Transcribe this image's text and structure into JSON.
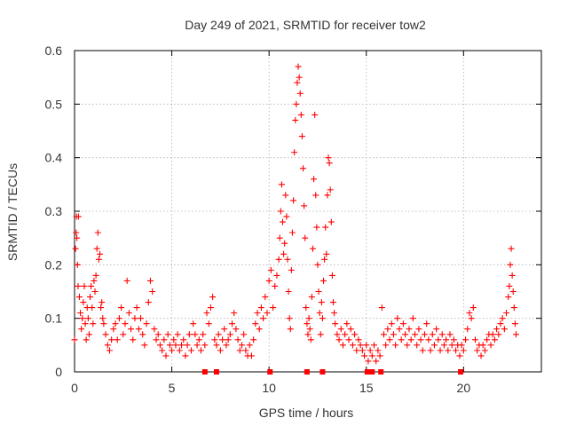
{
  "chart_data": {
    "type": "scatter",
    "title": "Day 249 of 2021, SRMTID for receiver tow2",
    "xlabel": "GPS time / hours",
    "ylabel": "SRMTID / TECUs",
    "xlim": [
      0,
      24
    ],
    "ylim": [
      0,
      0.6
    ],
    "xticks": [
      0,
      5,
      10,
      15,
      20
    ],
    "yticks": [
      0,
      0.1,
      0.2,
      0.3,
      0.4,
      0.5,
      0.6
    ],
    "xtick_labels": [
      "0",
      "5",
      "10",
      "15",
      "20"
    ],
    "ytick_labels": [
      "0",
      "0.1",
      "0.2",
      "0.3",
      "0.4",
      "0.5",
      "0.6"
    ],
    "grid": true,
    "legend": "none",
    "marker": "plus",
    "series": [
      {
        "name": "SRMTID",
        "color": "#ff0000",
        "points": [
          [
            0.0,
            0.06
          ],
          [
            0.05,
            0.23
          ],
          [
            0.08,
            0.26
          ],
          [
            0.1,
            0.29
          ],
          [
            0.12,
            0.25
          ],
          [
            0.15,
            0.2
          ],
          [
            0.18,
            0.16
          ],
          [
            0.2,
            0.29
          ],
          [
            0.25,
            0.14
          ],
          [
            0.3,
            0.11
          ],
          [
            0.35,
            0.08
          ],
          [
            0.4,
            0.1
          ],
          [
            0.45,
            0.13
          ],
          [
            0.5,
            0.16
          ],
          [
            0.55,
            0.09
          ],
          [
            0.6,
            0.06
          ],
          [
            0.65,
            0.12
          ],
          [
            0.7,
            0.1
          ],
          [
            0.75,
            0.07
          ],
          [
            0.8,
            0.14
          ],
          [
            0.85,
            0.16
          ],
          [
            0.9,
            0.12
          ],
          [
            0.95,
            0.09
          ],
          [
            1.0,
            0.17
          ],
          [
            1.05,
            0.15
          ],
          [
            1.1,
            0.18
          ],
          [
            1.15,
            0.23
          ],
          [
            1.2,
            0.26
          ],
          [
            1.25,
            0.21
          ],
          [
            1.3,
            0.22
          ],
          [
            1.35,
            0.12
          ],
          [
            1.4,
            0.13
          ],
          [
            1.45,
            0.1
          ],
          [
            1.5,
            0.09
          ],
          [
            1.6,
            0.07
          ],
          [
            1.7,
            0.05
          ],
          [
            1.8,
            0.04
          ],
          [
            1.9,
            0.06
          ],
          [
            2.0,
            0.08
          ],
          [
            2.1,
            0.09
          ],
          [
            2.2,
            0.06
          ],
          [
            2.3,
            0.1
          ],
          [
            2.4,
            0.12
          ],
          [
            2.5,
            0.07
          ],
          [
            2.6,
            0.09
          ],
          [
            2.7,
            0.17
          ],
          [
            2.8,
            0.11
          ],
          [
            2.9,
            0.08
          ],
          [
            3.0,
            0.06
          ],
          [
            3.1,
            0.1
          ],
          [
            3.2,
            0.12
          ],
          [
            3.3,
            0.08
          ],
          [
            3.4,
            0.1
          ],
          [
            3.5,
            0.07
          ],
          [
            3.6,
            0.05
          ],
          [
            3.7,
            0.09
          ],
          [
            3.8,
            0.13
          ],
          [
            3.9,
            0.17
          ],
          [
            4.0,
            0.15
          ],
          [
            4.1,
            0.08
          ],
          [
            4.2,
            0.06
          ],
          [
            4.3,
            0.07
          ],
          [
            4.4,
            0.05
          ],
          [
            4.5,
            0.04
          ],
          [
            4.6,
            0.06
          ],
          [
            4.7,
            0.03
          ],
          [
            4.8,
            0.07
          ],
          [
            4.9,
            0.05
          ],
          [
            5.0,
            0.04
          ],
          [
            5.1,
            0.06
          ],
          [
            5.2,
            0.05
          ],
          [
            5.3,
            0.07
          ],
          [
            5.4,
            0.04
          ],
          [
            5.5,
            0.05
          ],
          [
            5.6,
            0.06
          ],
          [
            5.7,
            0.03
          ],
          [
            5.8,
            0.05
          ],
          [
            5.9,
            0.07
          ],
          [
            6.0,
            0.04
          ],
          [
            6.1,
            0.09
          ],
          [
            6.2,
            0.07
          ],
          [
            6.3,
            0.05
          ],
          [
            6.4,
            0.06
          ],
          [
            6.5,
            0.04
          ],
          [
            6.6,
            0.07
          ],
          [
            6.7,
            0.05
          ],
          [
            6.8,
            0.11
          ],
          [
            6.9,
            0.09
          ],
          [
            7.0,
            0.12
          ],
          [
            7.1,
            0.14
          ],
          [
            7.2,
            0.06
          ],
          [
            7.3,
            0.05
          ],
          [
            7.4,
            0.07
          ],
          [
            7.5,
            0.04
          ],
          [
            7.6,
            0.06
          ],
          [
            7.7,
            0.08
          ],
          [
            7.8,
            0.05
          ],
          [
            7.9,
            0.06
          ],
          [
            8.0,
            0.07
          ],
          [
            8.1,
            0.09
          ],
          [
            8.2,
            0.11
          ],
          [
            8.3,
            0.08
          ],
          [
            8.4,
            0.06
          ],
          [
            8.5,
            0.04
          ],
          [
            8.6,
            0.05
          ],
          [
            8.7,
            0.07
          ],
          [
            8.8,
            0.04
          ],
          [
            8.9,
            0.03
          ],
          [
            9.0,
            0.05
          ],
          [
            9.1,
            0.03
          ],
          [
            9.2,
            0.06
          ],
          [
            9.3,
            0.09
          ],
          [
            9.4,
            0.11
          ],
          [
            9.5,
            0.08
          ],
          [
            9.6,
            0.12
          ],
          [
            9.7,
            0.1
          ],
          [
            9.8,
            0.14
          ],
          [
            9.9,
            0.11
          ],
          [
            10.0,
            0.17
          ],
          [
            10.1,
            0.19
          ],
          [
            10.2,
            0.12
          ],
          [
            10.3,
            0.16
          ],
          [
            10.4,
            0.18
          ],
          [
            10.5,
            0.21
          ],
          [
            10.55,
            0.25
          ],
          [
            10.6,
            0.3
          ],
          [
            10.65,
            0.35
          ],
          [
            10.7,
            0.28
          ],
          [
            10.75,
            0.22
          ],
          [
            10.8,
            0.24
          ],
          [
            10.85,
            0.33
          ],
          [
            10.9,
            0.29
          ],
          [
            10.95,
            0.21
          ],
          [
            11.0,
            0.15
          ],
          [
            11.05,
            0.1
          ],
          [
            11.1,
            0.08
          ],
          [
            11.15,
            0.19
          ],
          [
            11.2,
            0.26
          ],
          [
            11.25,
            0.32
          ],
          [
            11.3,
            0.41
          ],
          [
            11.35,
            0.47
          ],
          [
            11.4,
            0.5
          ],
          [
            11.45,
            0.54
          ],
          [
            11.5,
            0.57
          ],
          [
            11.55,
            0.55
          ],
          [
            11.6,
            0.52
          ],
          [
            11.65,
            0.48
          ],
          [
            11.7,
            0.44
          ],
          [
            11.75,
            0.38
          ],
          [
            11.8,
            0.31
          ],
          [
            11.85,
            0.25
          ],
          [
            11.9,
            0.12
          ],
          [
            11.95,
            0.09
          ],
          [
            12.0,
            0.07
          ],
          [
            12.05,
            0.1
          ],
          [
            12.1,
            0.08
          ],
          [
            12.15,
            0.06
          ],
          [
            12.2,
            0.14
          ],
          [
            12.25,
            0.23
          ],
          [
            12.3,
            0.36
          ],
          [
            12.35,
            0.48
          ],
          [
            12.4,
            0.33
          ],
          [
            12.45,
            0.27
          ],
          [
            12.5,
            0.2
          ],
          [
            12.55,
            0.15
          ],
          [
            12.6,
            0.11
          ],
          [
            12.65,
            0.07
          ],
          [
            12.7,
            0.13
          ],
          [
            12.75,
            0.1
          ],
          [
            12.8,
            0.17
          ],
          [
            12.85,
            0.21
          ],
          [
            12.9,
            0.27
          ],
          [
            12.95,
            0.22
          ],
          [
            13.0,
            0.33
          ],
          [
            13.05,
            0.4
          ],
          [
            13.1,
            0.39
          ],
          [
            13.15,
            0.34
          ],
          [
            13.2,
            0.28
          ],
          [
            13.25,
            0.18
          ],
          [
            13.3,
            0.13
          ],
          [
            13.35,
            0.11
          ],
          [
            13.4,
            0.09
          ],
          [
            13.5,
            0.07
          ],
          [
            13.6,
            0.06
          ],
          [
            13.7,
            0.08
          ],
          [
            13.8,
            0.05
          ],
          [
            13.9,
            0.07
          ],
          [
            14.0,
            0.09
          ],
          [
            14.1,
            0.06
          ],
          [
            14.2,
            0.08
          ],
          [
            14.3,
            0.05
          ],
          [
            14.4,
            0.07
          ],
          [
            14.5,
            0.04
          ],
          [
            14.6,
            0.06
          ],
          [
            14.7,
            0.05
          ],
          [
            14.8,
            0.04
          ],
          [
            14.9,
            0.03
          ],
          [
            15.0,
            0.05
          ],
          [
            15.1,
            0.02
          ],
          [
            15.2,
            0.04
          ],
          [
            15.3,
            0.03
          ],
          [
            15.4,
            0.05
          ],
          [
            15.5,
            0.02
          ],
          [
            15.6,
            0.04
          ],
          [
            15.7,
            0.03
          ],
          [
            15.8,
            0.12
          ],
          [
            15.9,
            0.07
          ],
          [
            16.0,
            0.05
          ],
          [
            16.1,
            0.08
          ],
          [
            16.2,
            0.06
          ],
          [
            16.3,
            0.09
          ],
          [
            16.4,
            0.07
          ],
          [
            16.5,
            0.05
          ],
          [
            16.6,
            0.1
          ],
          [
            16.7,
            0.08
          ],
          [
            16.8,
            0.06
          ],
          [
            16.9,
            0.09
          ],
          [
            17.0,
            0.07
          ],
          [
            17.1,
            0.05
          ],
          [
            17.2,
            0.08
          ],
          [
            17.3,
            0.06
          ],
          [
            17.4,
            0.1
          ],
          [
            17.5,
            0.07
          ],
          [
            17.6,
            0.05
          ],
          [
            17.7,
            0.08
          ],
          [
            17.8,
            0.06
          ],
          [
            17.9,
            0.04
          ],
          [
            18.0,
            0.07
          ],
          [
            18.1,
            0.09
          ],
          [
            18.2,
            0.06
          ],
          [
            18.3,
            0.04
          ],
          [
            18.4,
            0.07
          ],
          [
            18.5,
            0.05
          ],
          [
            18.6,
            0.08
          ],
          [
            18.7,
            0.06
          ],
          [
            18.8,
            0.04
          ],
          [
            18.9,
            0.07
          ],
          [
            19.0,
            0.05
          ],
          [
            19.1,
            0.06
          ],
          [
            19.2,
            0.04
          ],
          [
            19.3,
            0.07
          ],
          [
            19.4,
            0.05
          ],
          [
            19.5,
            0.06
          ],
          [
            19.6,
            0.04
          ],
          [
            19.7,
            0.05
          ],
          [
            19.8,
            0.03
          ],
          [
            19.9,
            0.05
          ],
          [
            20.0,
            0.04
          ],
          [
            20.1,
            0.06
          ],
          [
            20.2,
            0.08
          ],
          [
            20.3,
            0.11
          ],
          [
            20.4,
            0.1
          ],
          [
            20.5,
            0.12
          ],
          [
            20.6,
            0.06
          ],
          [
            20.7,
            0.04
          ],
          [
            20.8,
            0.05
          ],
          [
            20.9,
            0.03
          ],
          [
            21.0,
            0.05
          ],
          [
            21.1,
            0.04
          ],
          [
            21.2,
            0.06
          ],
          [
            21.3,
            0.07
          ],
          [
            21.4,
            0.05
          ],
          [
            21.5,
            0.07
          ],
          [
            21.6,
            0.06
          ],
          [
            21.7,
            0.08
          ],
          [
            21.8,
            0.07
          ],
          [
            21.9,
            0.09
          ],
          [
            22.0,
            0.1
          ],
          [
            22.1,
            0.08
          ],
          [
            22.2,
            0.11
          ],
          [
            22.3,
            0.14
          ],
          [
            22.35,
            0.16
          ],
          [
            22.4,
            0.2
          ],
          [
            22.45,
            0.23
          ],
          [
            22.5,
            0.18
          ],
          [
            22.55,
            0.15
          ],
          [
            22.6,
            0.12
          ],
          [
            22.65,
            0.09
          ],
          [
            22.7,
            0.07
          ]
        ]
      }
    ],
    "zero_markers": [
      6.7,
      7.3,
      10.05,
      11.95,
      12.75,
      15.05,
      15.2,
      15.3,
      15.75,
      19.85
    ]
  }
}
